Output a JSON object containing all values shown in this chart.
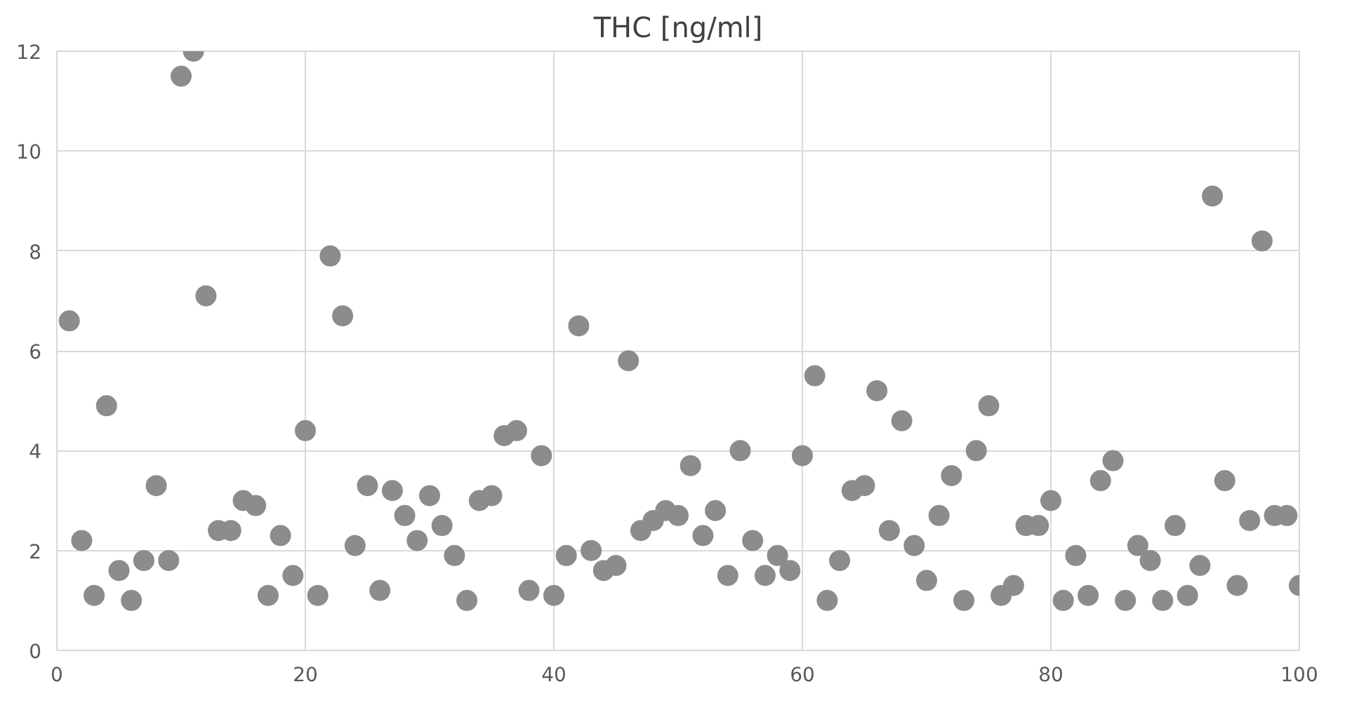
{
  "chart_data": {
    "type": "scatter",
    "title": "THC [ng/ml]",
    "x": [
      1,
      2,
      3,
      4,
      5,
      6,
      7,
      8,
      9,
      10,
      11,
      12,
      13,
      14,
      15,
      16,
      17,
      18,
      19,
      20,
      21,
      22,
      23,
      24,
      25,
      26,
      27,
      28,
      29,
      30,
      31,
      32,
      33,
      34,
      35,
      36,
      37,
      38,
      39,
      40,
      41,
      42,
      43,
      44,
      45,
      46,
      47,
      48,
      49,
      50,
      51,
      52,
      53,
      54,
      55,
      56,
      57,
      58,
      59,
      60,
      61,
      62,
      63,
      64,
      65,
      66,
      67,
      68,
      69,
      70,
      71,
      72,
      73,
      74,
      75,
      76,
      77,
      78,
      79,
      80,
      81,
      82,
      83,
      84,
      85,
      86,
      87,
      88,
      89,
      90,
      91,
      92,
      93,
      94,
      95,
      96,
      97,
      98,
      99,
      100
    ],
    "values": [
      6.6,
      2.2,
      1.1,
      4.9,
      1.6,
      1.0,
      1.8,
      3.3,
      1.8,
      11.5,
      12.0,
      7.1,
      2.4,
      2.4,
      3.0,
      2.9,
      1.1,
      2.3,
      1.5,
      4.4,
      1.1,
      7.9,
      6.7,
      2.1,
      3.3,
      1.2,
      3.2,
      2.7,
      2.2,
      3.1,
      2.5,
      1.9,
      1.0,
      3.0,
      3.1,
      4.3,
      4.4,
      1.2,
      3.9,
      1.1,
      1.9,
      6.5,
      2.0,
      1.6,
      1.7,
      5.8,
      2.4,
      2.6,
      2.8,
      2.7,
      3.7,
      2.3,
      2.8,
      1.5,
      4.0,
      2.2,
      1.5,
      1.9,
      1.6,
      3.9,
      5.5,
      1.0,
      1.8,
      3.2,
      3.3,
      5.2,
      2.4,
      4.6,
      2.1,
      1.4,
      2.7,
      3.5,
      1.0,
      4.0,
      4.9,
      1.1,
      1.3,
      2.5,
      2.5,
      3.0,
      1.0,
      1.9,
      1.1,
      3.4,
      3.8,
      1.0,
      2.1,
      1.8,
      1.0,
      2.5,
      1.1,
      1.7,
      9.1,
      3.4,
      1.3,
      2.6,
      8.2,
      2.7,
      2.7,
      1.3
    ],
    "color": "#8c8c8c",
    "marker": "circle",
    "xlim": [
      0,
      100
    ],
    "xticks": [
      0,
      20,
      40,
      60,
      80,
      100
    ],
    "ylim": [
      0,
      12
    ],
    "yticks": [
      0,
      2,
      4,
      6,
      8,
      10,
      12
    ],
    "grid": true
  }
}
